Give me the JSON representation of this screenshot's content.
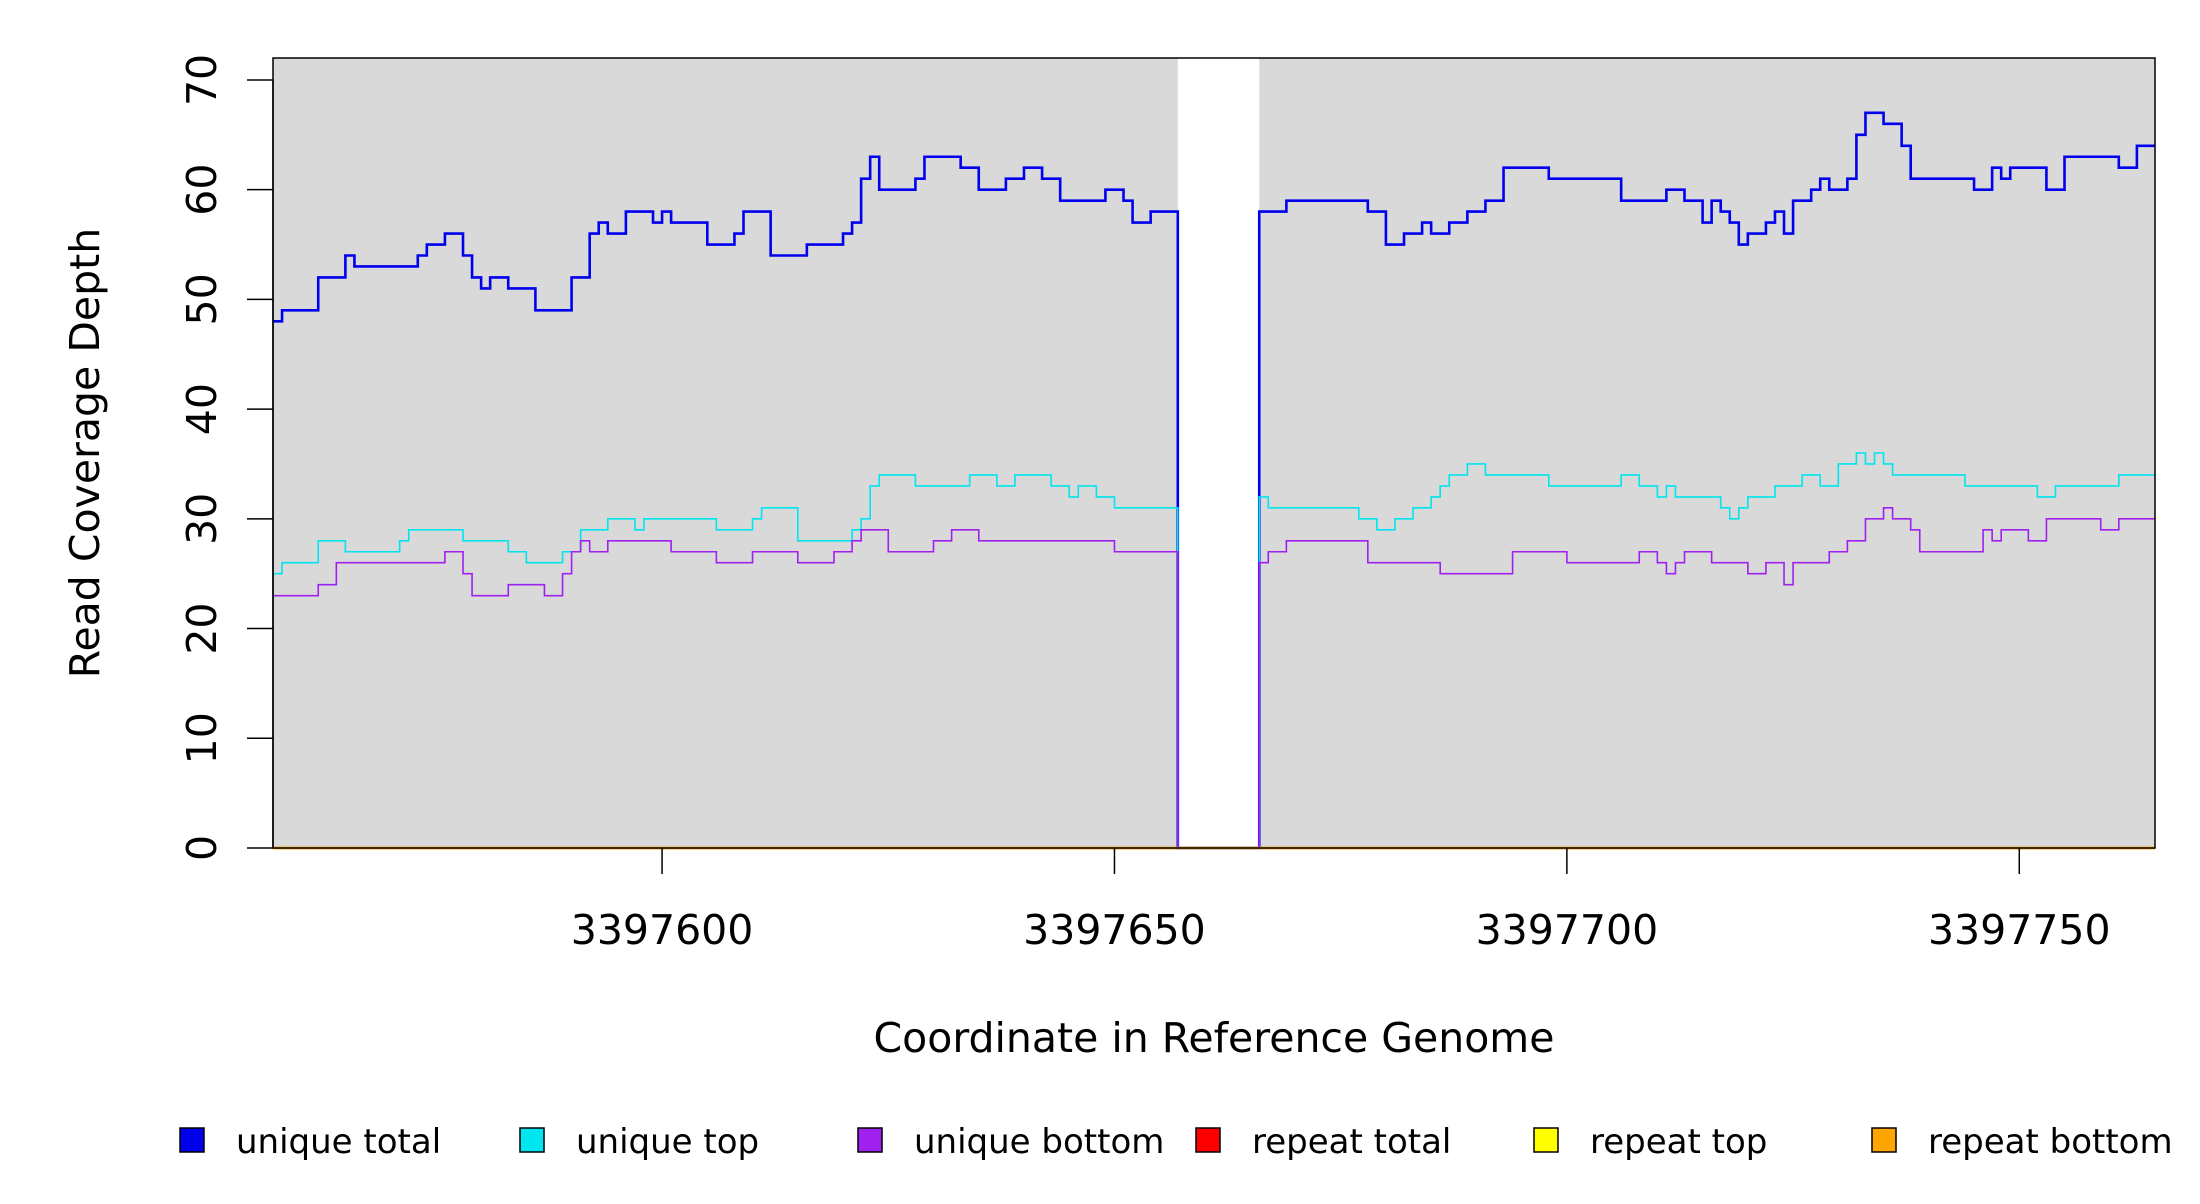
{
  "chart_data": {
    "type": "line",
    "title": "",
    "xlabel": "Coordinate in Reference Genome",
    "ylabel": "Read Coverage Depth",
    "xlim": [
      3397557,
      3397765
    ],
    "ylim": [
      0,
      72
    ],
    "x_ticks": [
      3397600,
      3397650,
      3397700,
      3397750
    ],
    "y_ticks": [
      0,
      10,
      20,
      30,
      40,
      50,
      60,
      70
    ],
    "x_tick_labels": [
      "3397600",
      "3397650",
      "3397700",
      "3397750"
    ],
    "y_tick_labels": [
      "0",
      "10",
      "20",
      "30",
      "40",
      "50",
      "60",
      "70"
    ],
    "grid": false,
    "legend_position": "bottom",
    "background_color": "#d9d9d9",
    "gap_region": [
      3397657,
      3397666
    ],
    "series": [
      {
        "name": "unique total",
        "color": "#0000ee",
        "step": true,
        "x": [
          3397557,
          3397558,
          3397562,
          3397565,
          3397566,
          3397572,
          3397573,
          3397574,
          3397576,
          3397578,
          3397579,
          3397580,
          3397581,
          3397582,
          3397583,
          3397586,
          3397587,
          3397590,
          3397592,
          3397593,
          3397594,
          3397596,
          3397599,
          3397600,
          3397601,
          3397605,
          3397608,
          3397609,
          3397612,
          3397616,
          3397620,
          3397621,
          3397622,
          3397623,
          3397624,
          3397628,
          3397629,
          3397633,
          3397635,
          3397638,
          3397640,
          3397642,
          3397644,
          3397649,
          3397651,
          3397652,
          3397654,
          3397655,
          3397657,
          3397666,
          3397669,
          3397673,
          3397678,
          3397680,
          3397682,
          3397684,
          3397685,
          3397687,
          3397689,
          3397691,
          3397693,
          3397698,
          3397706,
          3397711,
          3397713,
          3397715,
          3397716,
          3397717,
          3397718,
          3397719,
          3397720,
          3397722,
          3397723,
          3397724,
          3397725,
          3397727,
          3397728,
          3397729,
          3397731,
          3397732,
          3397733,
          3397735,
          3397737,
          3397738,
          3397745,
          3397747,
          3397748,
          3397749,
          3397750,
          3397753,
          3397755,
          3397761,
          3397763
        ],
        "values": [
          48,
          49,
          52,
          54,
          53,
          53,
          54,
          55,
          56,
          54,
          52,
          51,
          52,
          52,
          51,
          49,
          49,
          52,
          56,
          57,
          56,
          58,
          57,
          58,
          57,
          55,
          56,
          58,
          54,
          55,
          56,
          57,
          61,
          63,
          60,
          61,
          63,
          62,
          60,
          61,
          62,
          61,
          59,
          60,
          59,
          57,
          58,
          58,
          0,
          58,
          59,
          59,
          58,
          55,
          56,
          57,
          56,
          57,
          58,
          59,
          62,
          61,
          59,
          60,
          59,
          57,
          59,
          58,
          57,
          55,
          56,
          57,
          58,
          56,
          59,
          60,
          61,
          60,
          61,
          65,
          67,
          66,
          64,
          61,
          60,
          62,
          61,
          62,
          62,
          60,
          63,
          62,
          64
        ]
      },
      {
        "name": "unique top",
        "color": "#00e5ee",
        "step": true,
        "x": [
          3397557,
          3397558,
          3397562,
          3397565,
          3397571,
          3397572,
          3397578,
          3397583,
          3397585,
          3397589,
          3397591,
          3397594,
          3397597,
          3397598,
          3397599,
          3397601,
          3397606,
          3397610,
          3397611,
          3397615,
          3397621,
          3397622,
          3397623,
          3397624,
          3397628,
          3397634,
          3397637,
          3397639,
          3397643,
          3397645,
          3397646,
          3397648,
          3397650,
          3397657,
          3397666,
          3397667,
          3397670,
          3397677,
          3397679,
          3397681,
          3397683,
          3397685,
          3397686,
          3397687,
          3397689,
          3397691,
          3397693,
          3397698,
          3397706,
          3397708,
          3397710,
          3397711,
          3397712,
          3397717,
          3397718,
          3397719,
          3397720,
          3397723,
          3397726,
          3397728,
          3397730,
          3397732,
          3397733,
          3397734,
          3397735,
          3397736,
          3397737,
          3397744,
          3397752,
          3397754,
          3397761
        ],
        "values": [
          25,
          26,
          28,
          27,
          28,
          29,
          28,
          27,
          26,
          27,
          29,
          30,
          29,
          30,
          30,
          30,
          29,
          30,
          31,
          28,
          29,
          30,
          33,
          34,
          33,
          34,
          33,
          34,
          33,
          32,
          33,
          32,
          31,
          0,
          32,
          31,
          31,
          30,
          29,
          30,
          31,
          32,
          33,
          34,
          35,
          34,
          34,
          33,
          34,
          33,
          32,
          33,
          32,
          31,
          30,
          31,
          32,
          33,
          34,
          33,
          35,
          36,
          35,
          36,
          35,
          34,
          34,
          33,
          32,
          33,
          34
        ]
      },
      {
        "name": "unique bottom",
        "color": "#a020f0",
        "step": true,
        "x": [
          3397557,
          3397562,
          3397564,
          3397575,
          3397576,
          3397578,
          3397579,
          3397583,
          3397587,
          3397589,
          3397590,
          3397591,
          3397592,
          3397594,
          3397601,
          3397606,
          3397610,
          3397615,
          3397619,
          3397620,
          3397621,
          3397622,
          3397625,
          3397626,
          3397630,
          3397632,
          3397635,
          3397645,
          3397650,
          3397657,
          3397666,
          3397667,
          3397669,
          3397676,
          3397678,
          3397682,
          3397686,
          3397694,
          3397700,
          3397706,
          3397708,
          3397710,
          3397711,
          3397712,
          3397713,
          3397716,
          3397720,
          3397721,
          3397722,
          3397724,
          3397725,
          3397728,
          3397729,
          3397731,
          3397733,
          3397735,
          3397736,
          3397738,
          3397739,
          3397743,
          3397746,
          3397747,
          3397748,
          3397751,
          3397753,
          3397759,
          3397761
        ],
        "values": [
          23,
          24,
          26,
          26,
          27,
          25,
          23,
          24,
          23,
          25,
          27,
          28,
          27,
          28,
          27,
          26,
          27,
          26,
          27,
          27,
          28,
          29,
          27,
          27,
          28,
          29,
          28,
          28,
          27,
          0,
          26,
          27,
          28,
          28,
          26,
          26,
          25,
          27,
          26,
          26,
          27,
          26,
          25,
          26,
          27,
          26,
          25,
          25,
          26,
          24,
          26,
          26,
          27,
          28,
          30,
          31,
          30,
          29,
          27,
          27,
          29,
          28,
          29,
          28,
          30,
          29,
          30
        ]
      },
      {
        "name": "repeat total",
        "color": "#ff0000",
        "step": true,
        "x": [
          3397557,
          3397765
        ],
        "values": [
          0,
          0
        ]
      },
      {
        "name": "repeat top",
        "color": "#ffff00",
        "step": true,
        "x": [
          3397557,
          3397765
        ],
        "values": [
          0,
          0
        ]
      },
      {
        "name": "repeat bottom",
        "color": "#ffa500",
        "step": true,
        "x": [
          3397557,
          3397765
        ],
        "values": [
          0,
          0
        ]
      }
    ]
  }
}
